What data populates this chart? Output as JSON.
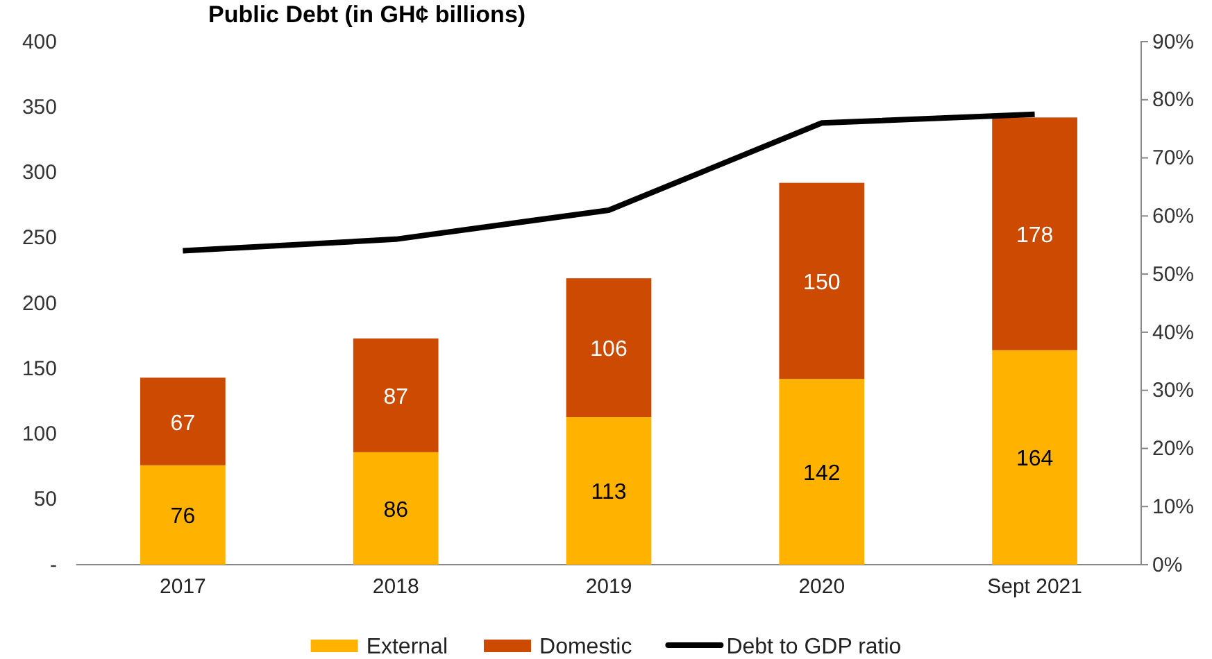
{
  "chart_data": {
    "type": "bar",
    "title": "Public Debt (in GH¢ billions)",
    "categories": [
      "2017",
      "2018",
      "2019",
      "2020",
      "Sept 2021"
    ],
    "stacked": true,
    "series": [
      {
        "name": "External",
        "color": "#ffb300",
        "values": [
          76,
          86,
          113,
          142,
          164
        ],
        "value_labels": [
          "76",
          "86",
          "113",
          "142",
          "164"
        ]
      },
      {
        "name": "Domestic",
        "color": "#cc4a02",
        "values": [
          67,
          87,
          106,
          150,
          178
        ],
        "value_labels": [
          "67",
          "87",
          "106",
          "150",
          "178"
        ]
      },
      {
        "name": "Debt to GDP ratio",
        "type": "line",
        "axis": "y2",
        "color": "#000000",
        "values": [
          54,
          56,
          61,
          76,
          77.5
        ]
      }
    ],
    "ylim": [
      0,
      400
    ],
    "yticks": [
      {
        "value": 0,
        "label": "-"
      },
      50,
      100,
      150,
      200,
      250,
      300,
      350,
      400
    ],
    "y2lim": [
      0,
      90
    ],
    "y2ticks": [
      {
        "value": 0,
        "label": "0%"
      },
      {
        "value": 10,
        "label": "10%"
      },
      {
        "value": 20,
        "label": "20%"
      },
      {
        "value": 30,
        "label": "30%"
      },
      {
        "value": 40,
        "label": "40%"
      },
      {
        "value": 50,
        "label": "50%"
      },
      {
        "value": 60,
        "label": "60%"
      },
      {
        "value": 70,
        "label": "70%"
      },
      {
        "value": 80,
        "label": "80%"
      },
      {
        "value": 90,
        "label": "90%"
      }
    ],
    "legend": "bottom",
    "grid": false,
    "marker": "none"
  }
}
